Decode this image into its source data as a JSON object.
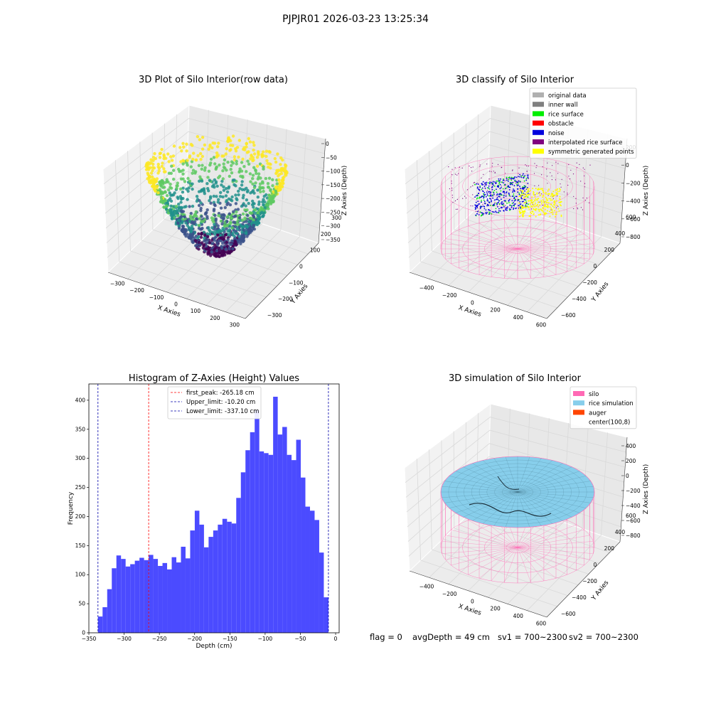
{
  "suptitle": "PJPJR01 2026-03-23 13:25:34",
  "status_line": {
    "flag": "flag = 0",
    "avg": "avgDepth = 49 cm",
    "sv1": "sv1 = 700~2300",
    "sv2": "sv2 = 700~2300"
  },
  "chart_data": [
    {
      "type": "scatter",
      "projection": "3d",
      "title": "3D Plot of Silo Interior(row data)",
      "xlabel": "X Axies",
      "ylabel": "Y Axies",
      "zlabel": "Z Axies (Depth)",
      "xticks": [
        "−300",
        "−200",
        "−100",
        "0",
        "100",
        "200",
        "300"
      ],
      "yticks": [
        "−300",
        "−200",
        "−100",
        "0",
        "100",
        "200",
        "300"
      ],
      "zticks": [
        "0",
        "−50",
        "−100",
        "−150",
        "−200",
        "−250",
        "−300",
        "−350"
      ],
      "colormap": "viridis",
      "zlim": [
        -350,
        0
      ]
    },
    {
      "type": "scatter",
      "projection": "3d",
      "title": "3D classify of Silo Interior",
      "xlabel": "X Axies",
      "ylabel": "Y Axies",
      "zlabel": "Z Axies (Depth)",
      "xticks": [
        "−400",
        "−200",
        "0",
        "200",
        "400",
        "600"
      ],
      "yticks": [
        "−600",
        "−400",
        "−200",
        "0",
        "200",
        "400",
        "600"
      ],
      "zticks": [
        "200",
        "0",
        "−200",
        "−400",
        "−600",
        "−800"
      ],
      "legend_position": "top-right",
      "legend": [
        {
          "label": "original data",
          "color": "#b0b0b0"
        },
        {
          "label": "inner wall",
          "color": "#808080"
        },
        {
          "label": "rice surface",
          "color": "#00ee00"
        },
        {
          "label": "obstacle",
          "color": "#ff0000"
        },
        {
          "label": "noise",
          "color": "#0000dd"
        },
        {
          "label": "interpolated rice surface",
          "color": "#800080"
        },
        {
          "label": "symmetric generated points",
          "color": "#ffff00"
        }
      ]
    },
    {
      "type": "bar",
      "title": "Histogram of Z-Axies (Height) Values",
      "xlabel": "Depth (cm)",
      "ylabel": "Frequency",
      "xlim": [
        -350,
        5
      ],
      "ylim": [
        0,
        428
      ],
      "xticks": [
        -350,
        -300,
        -250,
        -200,
        -150,
        -100,
        -50,
        0
      ],
      "yticks": [
        0,
        50,
        100,
        150,
        200,
        250,
        300,
        350,
        400
      ],
      "bin_start": -337.1,
      "bin_width": 6.538,
      "values": [
        28,
        44,
        75,
        111,
        133,
        127,
        114,
        118,
        124,
        129,
        125,
        134,
        127,
        115,
        120,
        109,
        130,
        121,
        148,
        128,
        176,
        210,
        186,
        147,
        165,
        176,
        186,
        196,
        191,
        188,
        232,
        276,
        314,
        345,
        383,
        312,
        309,
        306,
        406,
        341,
        354,
        306,
        297,
        332,
        267,
        217,
        210,
        194,
        138,
        61
      ],
      "bar_color": "#4b4bff",
      "legend_position": "upper-center",
      "vlines": [
        {
          "label": "first_peak: -265.18 cm",
          "x": -265.18,
          "color": "#ff0000"
        },
        {
          "label": "Upper_limit: -10.20 cm",
          "x": -10.2,
          "color": "#0000aa"
        },
        {
          "label": "Lower_limit: -337.10 cm",
          "x": -337.1,
          "color": "#0000aa"
        }
      ]
    },
    {
      "type": "surface",
      "projection": "3d",
      "title": "3D simulation of Silo Interior",
      "xlabel": "X Axies",
      "ylabel": "Y Axies",
      "zlabel": "Z Axies (Depth)",
      "xticks": [
        "−400",
        "−200",
        "0",
        "200",
        "400",
        "600"
      ],
      "yticks": [
        "−600",
        "−400",
        "−200",
        "0",
        "200",
        "400",
        "600"
      ],
      "zticks": [
        "400",
        "200",
        "0",
        "−200",
        "−400",
        "−600",
        "−800"
      ],
      "legend_position": "top-right",
      "legend": [
        {
          "label": "silo",
          "color": "#ff69b4"
        },
        {
          "label": "rice simulation",
          "color": "#87ceeb"
        },
        {
          "label": "auger",
          "color": "#ff4500"
        },
        {
          "label": "center(100,8)",
          "color": "#ffffff"
        }
      ]
    }
  ]
}
